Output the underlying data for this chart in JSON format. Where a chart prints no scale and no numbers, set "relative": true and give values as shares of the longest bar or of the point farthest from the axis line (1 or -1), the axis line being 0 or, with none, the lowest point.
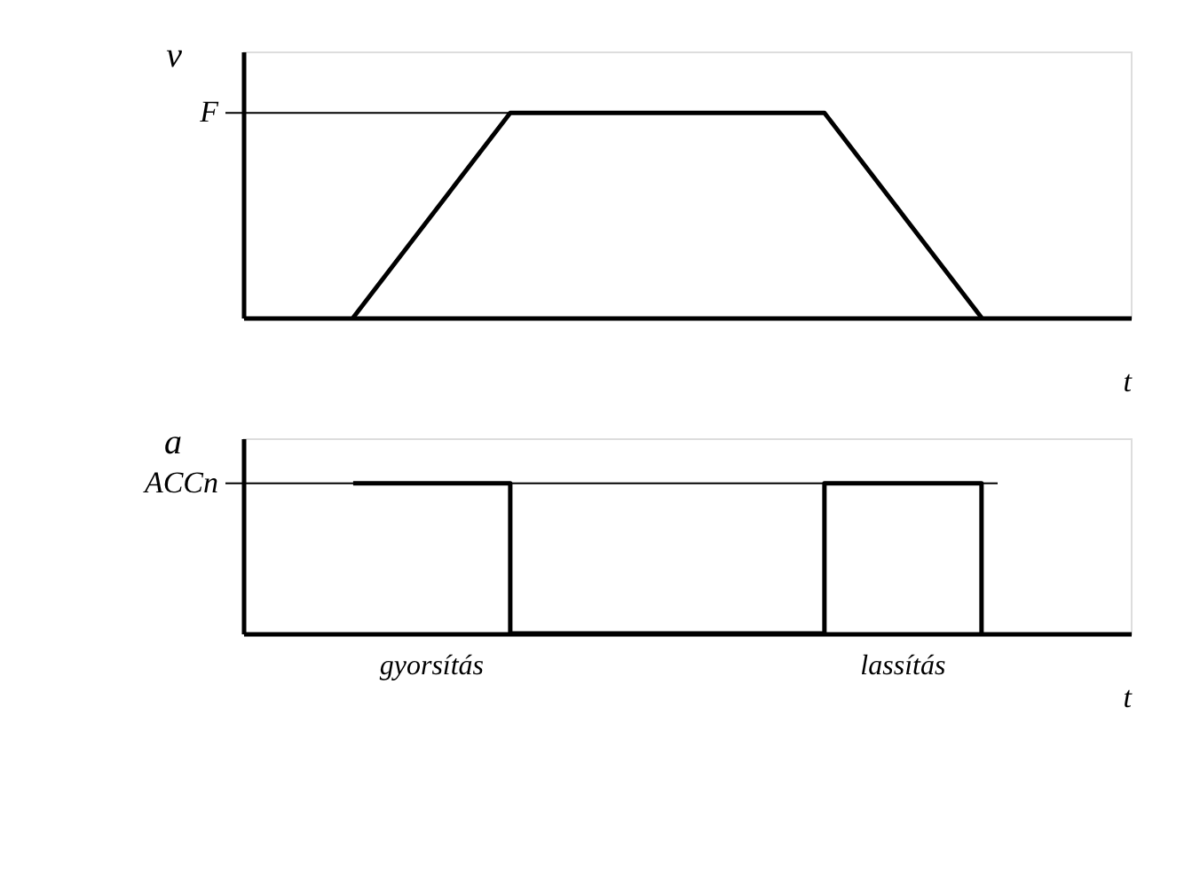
{
  "chart_data": [
    {
      "type": "line",
      "relative": true,
      "categories": [
        null,
        null,
        null,
        null,
        null
      ],
      "values": [
        0,
        1,
        1,
        1,
        0
      ],
      "color": "#000000",
      "xlabel": "t",
      "ylabel": "v",
      "ref_lines": [
        {
          "axis": "y",
          "value": 1,
          "label": "F"
        }
      ]
    },
    {
      "type": "step",
      "relative": true,
      "categories": [
        null,
        null,
        null,
        null,
        null
      ],
      "values": [
        1,
        0,
        0,
        1,
        0
      ],
      "color": "#000000",
      "xlabel": "t",
      "ylabel": "a",
      "ref_lines": [
        {
          "axis": "y",
          "value": 1,
          "label": "ACCn"
        }
      ],
      "annotations": [
        "gyorsítás",
        "lassítás"
      ]
    }
  ]
}
